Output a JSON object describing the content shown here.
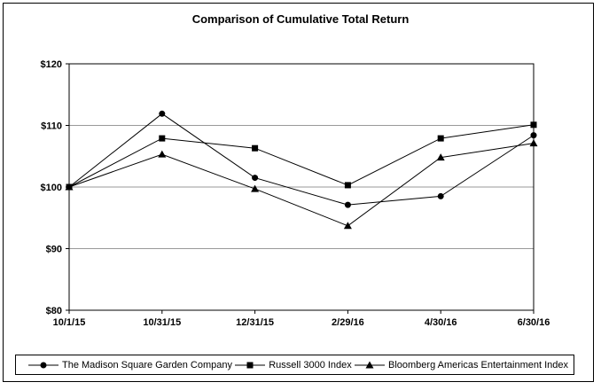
{
  "chart_data": {
    "type": "line",
    "title": "Comparison of Cumulative Total Return",
    "categories": [
      "10/1/15",
      "10/31/15",
      "12/31/15",
      "2/29/16",
      "4/30/16",
      "6/30/16"
    ],
    "series": [
      {
        "name": "The Madison Square Garden Company",
        "marker": "circle",
        "values": [
          100,
          111.9,
          101.5,
          97.1,
          98.5,
          108.4
        ]
      },
      {
        "name": "Russell 3000 Index",
        "marker": "square",
        "values": [
          100,
          107.9,
          106.3,
          100.3,
          107.9,
          110.1
        ]
      },
      {
        "name": "Bloomberg Americas Entertainment Index",
        "marker": "triangle",
        "values": [
          100,
          105.3,
          99.7,
          93.7,
          104.8,
          107.1
        ]
      }
    ],
    "xlabel": "",
    "ylabel": "",
    "ylim": [
      80,
      120
    ],
    "ytick_values": [
      80,
      90,
      100,
      110,
      120
    ],
    "ytick_labels": [
      "$80",
      "$90",
      "$100",
      "$110",
      "$120"
    ],
    "grid": true,
    "legend_position": "bottom",
    "line_color": "#000000",
    "gridline_color": "#999999"
  }
}
